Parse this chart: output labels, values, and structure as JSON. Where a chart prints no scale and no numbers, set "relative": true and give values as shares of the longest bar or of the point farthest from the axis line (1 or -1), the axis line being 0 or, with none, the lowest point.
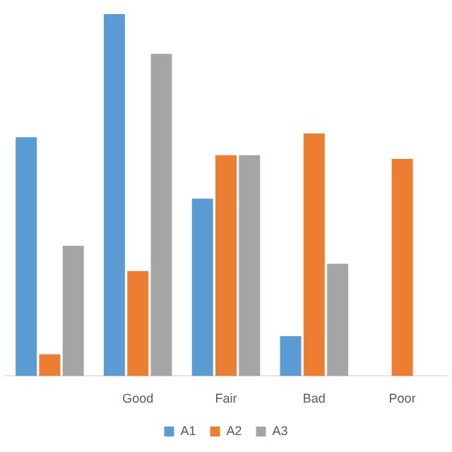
{
  "chart_data": {
    "type": "bar",
    "relative": true,
    "categories": [
      null,
      "Good",
      "Fair",
      "Bad",
      "Poor"
    ],
    "legend": "bottom",
    "series": [
      {
        "name": "A1",
        "color": "#5b9bd5",
        "values": [
          0.66,
          1,
          0.49,
          0.11,
          0
        ]
      },
      {
        "name": "A2",
        "color": "#ed7d31",
        "values": [
          0.06,
          0.29,
          0.61,
          0.67,
          0.6
        ]
      },
      {
        "name": "A3",
        "color": "#a5a5a5",
        "values": [
          0.36,
          0.89,
          0.61,
          0.31,
          null
        ]
      }
    ]
  }
}
